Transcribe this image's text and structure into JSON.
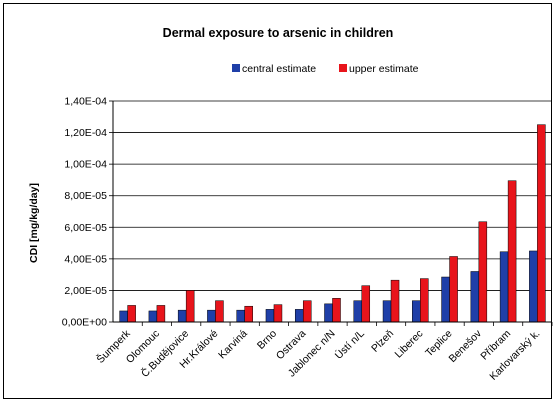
{
  "chart_data": {
    "type": "bar",
    "title": "Dermal exposure to arsenic in children",
    "xlabel": "",
    "ylabel": "CDI [mg/kg/day]",
    "ylim": [
      0,
      0.00014
    ],
    "yticks": [
      "0,00E+00",
      "2,00E-05",
      "4,00E-05",
      "6,00E-05",
      "8,00E-05",
      "1,00E-04",
      "1,20E-04",
      "1,40E-04"
    ],
    "grid": true,
    "legend_position": "top",
    "categories": [
      "Šumperk",
      "Olomouc",
      "Č.Budějovice",
      "Hr.Králové",
      "Karviná",
      "Brno",
      "Ostrava",
      "Jablonec n/N",
      "Ústí n/L",
      "Plzeň",
      "Liberec",
      "Teplice",
      "Benešov",
      "Příbram",
      "Karlovarský k."
    ],
    "series": [
      {
        "name": "central estimate",
        "color": "#1f3fa8",
        "values": [
          7e-06,
          7e-06,
          7.5e-06,
          7.5e-06,
          7.5e-06,
          8e-06,
          8e-06,
          1.15e-05,
          1.35e-05,
          1.35e-05,
          1.35e-05,
          2.85e-05,
          3.2e-05,
          4.45e-05,
          4.5e-05
        ]
      },
      {
        "name": "upper estimate",
        "color": "#e8141b",
        "values": [
          1.05e-05,
          1.05e-05,
          2e-05,
          1.35e-05,
          1e-05,
          1.1e-05,
          1.35e-05,
          1.5e-05,
          2.3e-05,
          2.65e-05,
          2.75e-05,
          4.15e-05,
          6.35e-05,
          8.95e-05,
          0.000125
        ]
      }
    ]
  }
}
